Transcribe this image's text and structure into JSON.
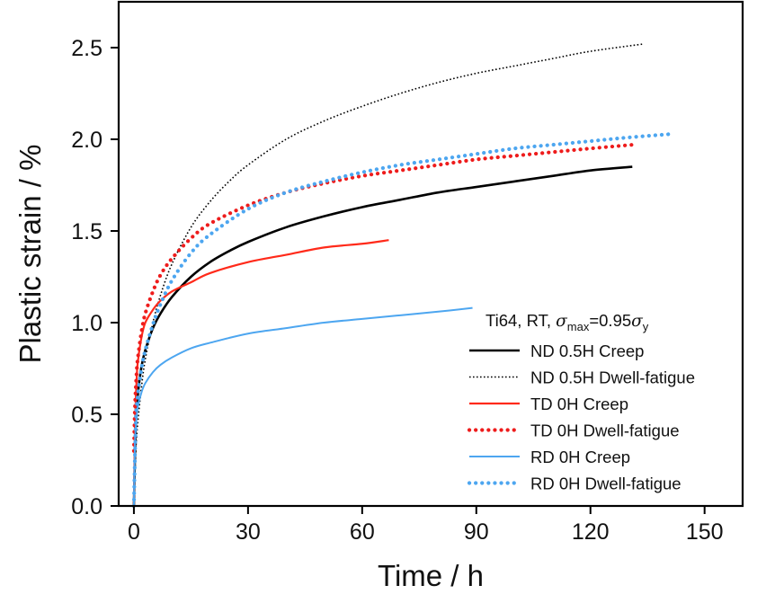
{
  "chart_data": {
    "type": "line",
    "title": "",
    "xlabel": "Time / h",
    "ylabel": "Plastic strain / %",
    "xlim": [
      -4,
      160
    ],
    "ylim": [
      0,
      2.75
    ],
    "xticks": [
      0,
      30,
      60,
      90,
      120,
      150
    ],
    "xtick_labels": [
      "0",
      "30",
      "60",
      "90",
      "120",
      "150"
    ],
    "yticks": [
      0.0,
      0.5,
      1.0,
      1.5,
      2.0,
      2.5
    ],
    "ytick_labels": [
      "0.0",
      "0.5",
      "1.0",
      "1.5",
      "2.0",
      "2.5"
    ],
    "grid": false,
    "legend": {
      "placement": "bottom-right",
      "title": {
        "prefix": "Ti64, RT, ",
        "sigma": "σ",
        "sub_max": "max",
        "equals": "=0.95",
        "sub_y": "y"
      }
    },
    "series": [
      {
        "name": "ND 0.5H Creep",
        "color": "#000000",
        "style": "solid",
        "x": [
          0,
          0.5,
          1,
          2,
          3,
          5,
          7,
          10,
          15,
          20,
          25,
          30,
          40,
          50,
          60,
          70,
          80,
          90,
          100,
          110,
          120,
          131
        ],
        "y": [
          0.0,
          0.45,
          0.6,
          0.76,
          0.85,
          0.97,
          1.05,
          1.14,
          1.25,
          1.33,
          1.39,
          1.44,
          1.52,
          1.58,
          1.63,
          1.67,
          1.71,
          1.74,
          1.77,
          1.8,
          1.83,
          1.85
        ]
      },
      {
        "name": "ND 0.5H Dwell-fatigue",
        "color": "#000000",
        "style": "dotted",
        "x": [
          0,
          0.5,
          1,
          2,
          3,
          5,
          7,
          10,
          15,
          20,
          25,
          30,
          40,
          50,
          60,
          70,
          80,
          90,
          100,
          110,
          120,
          134
        ],
        "y": [
          0.0,
          0.3,
          0.45,
          0.65,
          0.8,
          1.0,
          1.15,
          1.32,
          1.52,
          1.66,
          1.77,
          1.86,
          2.0,
          2.1,
          2.18,
          2.25,
          2.31,
          2.36,
          2.4,
          2.44,
          2.48,
          2.52
        ]
      },
      {
        "name": "TD 0H Creep",
        "color": "#ff2a1a",
        "style": "solid",
        "x": [
          0,
          0.3,
          0.7,
          1,
          2,
          3,
          5,
          7,
          10,
          15,
          20,
          30,
          40,
          50,
          60,
          67
        ],
        "y": [
          0.0,
          0.45,
          0.68,
          0.78,
          0.92,
          1.0,
          1.07,
          1.12,
          1.17,
          1.22,
          1.27,
          1.33,
          1.37,
          1.41,
          1.43,
          1.45
        ]
      },
      {
        "name": "TD 0H Dwell-fatigue",
        "color": "#ee1c1c",
        "style": "dots",
        "x": [
          0,
          0.3,
          0.7,
          1,
          2,
          3,
          5,
          7,
          10,
          15,
          20,
          30,
          40,
          50,
          60,
          70,
          80,
          90,
          100,
          110,
          120,
          131
        ],
        "y": [
          0.3,
          0.55,
          0.72,
          0.8,
          0.95,
          1.05,
          1.17,
          1.26,
          1.35,
          1.46,
          1.54,
          1.64,
          1.71,
          1.76,
          1.8,
          1.83,
          1.86,
          1.89,
          1.91,
          1.93,
          1.95,
          1.97
        ]
      },
      {
        "name": "RD 0H Creep",
        "color": "#4da6f0",
        "style": "solid",
        "x": [
          0,
          0.3,
          0.7,
          1,
          2,
          3,
          5,
          7,
          10,
          15,
          20,
          30,
          40,
          50,
          60,
          70,
          80,
          89
        ],
        "y": [
          0.0,
          0.35,
          0.48,
          0.54,
          0.62,
          0.67,
          0.73,
          0.77,
          0.81,
          0.86,
          0.89,
          0.94,
          0.97,
          1.0,
          1.02,
          1.04,
          1.06,
          1.08
        ]
      },
      {
        "name": "RD 0H Dwell-fatigue",
        "color": "#4da6f0",
        "style": "dots",
        "x": [
          0,
          0.5,
          1,
          2,
          3,
          5,
          7,
          10,
          15,
          20,
          30,
          40,
          50,
          60,
          70,
          80,
          90,
          100,
          110,
          120,
          130,
          142
        ],
        "y": [
          0.0,
          0.45,
          0.6,
          0.75,
          0.85,
          0.99,
          1.1,
          1.23,
          1.38,
          1.48,
          1.62,
          1.71,
          1.77,
          1.82,
          1.86,
          1.89,
          1.92,
          1.95,
          1.97,
          1.99,
          2.01,
          2.03
        ]
      }
    ]
  }
}
